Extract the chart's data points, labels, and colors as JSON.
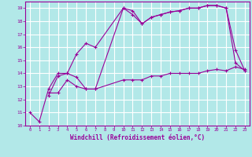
{
  "background_color": "#b2e8e8",
  "grid_color": "#ffffff",
  "line_color": "#990099",
  "xlabel": "Windchill (Refroidissement éolien,°C)",
  "xlim": [
    -0.5,
    23.5
  ],
  "ylim": [
    10,
    19.5
  ],
  "xticks": [
    0,
    1,
    2,
    3,
    4,
    5,
    6,
    7,
    8,
    9,
    10,
    11,
    12,
    13,
    14,
    15,
    16,
    17,
    18,
    19,
    20,
    21,
    22,
    23
  ],
  "yticks": [
    10,
    11,
    12,
    13,
    14,
    15,
    16,
    17,
    18,
    19
  ],
  "series": [
    {
      "x": [
        0,
        1,
        2,
        3,
        4,
        5,
        6,
        7,
        10,
        11,
        12,
        13,
        14,
        15,
        16,
        17,
        18,
        19,
        20,
        21,
        22,
        23
      ],
      "y": [
        11.0,
        10.3,
        12.8,
        14.0,
        14.0,
        13.7,
        12.8,
        12.8,
        19.0,
        18.8,
        17.8,
        18.3,
        18.5,
        18.7,
        18.8,
        19.0,
        19.0,
        19.2,
        19.2,
        19.0,
        14.8,
        14.2
      ]
    },
    {
      "x": [
        2,
        3,
        4,
        5,
        6,
        7,
        10,
        11,
        12,
        13,
        14,
        15,
        16,
        17,
        18,
        19,
        20,
        21,
        22,
        23
      ],
      "y": [
        12.3,
        13.8,
        14.0,
        15.5,
        16.3,
        16.0,
        19.0,
        18.5,
        17.8,
        18.3,
        18.5,
        18.7,
        18.8,
        19.0,
        19.0,
        19.2,
        19.2,
        19.0,
        15.8,
        14.2
      ]
    },
    {
      "x": [
        2,
        3,
        4,
        5,
        6,
        7,
        10,
        11,
        12,
        13,
        14,
        15,
        16,
        17,
        18,
        19,
        20,
        21,
        22,
        23
      ],
      "y": [
        12.5,
        12.5,
        13.5,
        13.0,
        12.8,
        12.8,
        13.5,
        13.5,
        13.5,
        13.8,
        13.8,
        14.0,
        14.0,
        14.0,
        14.0,
        14.2,
        14.3,
        14.2,
        14.5,
        14.3
      ]
    }
  ]
}
